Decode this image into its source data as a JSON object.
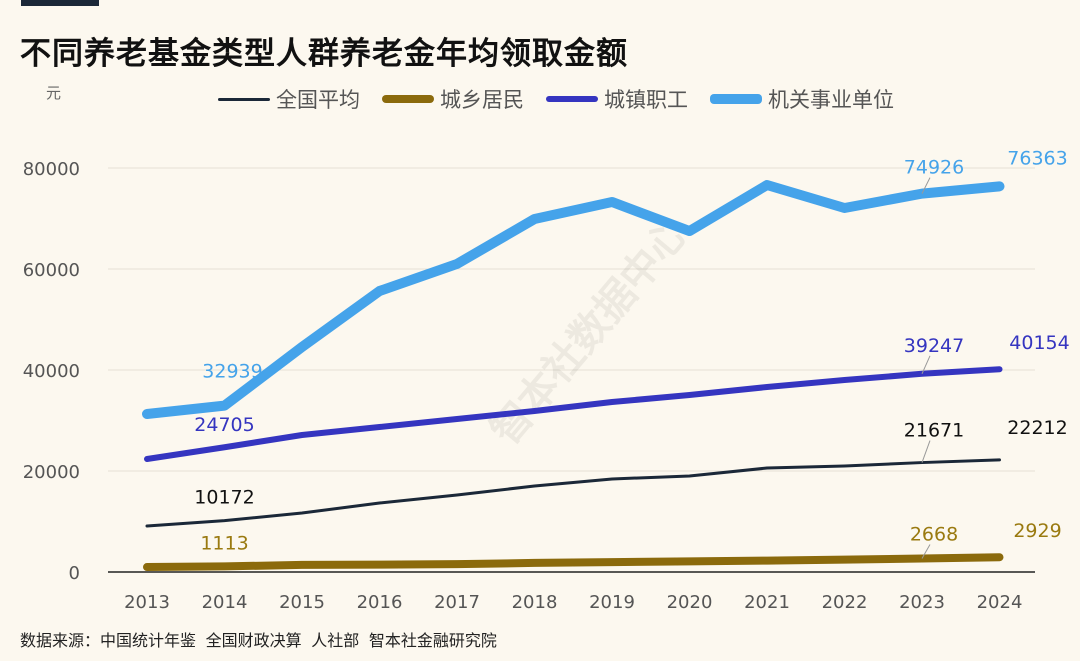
{
  "title": "不同养老基金类型人群养老金年均领取金额",
  "unit": "元",
  "source": "数据来源：中国统计年鉴 全国财政决算 人社部 智本社金融研究院",
  "watermark": "智本社数据中心",
  "chart_data": {
    "type": "line",
    "title": "不同养老基金类型人群养老金年均领取金额",
    "ylabel": "元",
    "ylim": [
      0,
      80000
    ],
    "yticks": [
      0,
      20000,
      40000,
      60000,
      80000
    ],
    "grid": true,
    "legend": "top",
    "x": [
      2013,
      2014,
      2015,
      2016,
      2017,
      2018,
      2019,
      2020,
      2021,
      2022,
      2023,
      2024
    ],
    "series": [
      {
        "name": "全国平均",
        "color": "#1b2838",
        "values": [
          9110,
          10172,
          11680,
          13660,
          15250,
          17030,
          18420,
          19010,
          20590,
          21000,
          21671,
          22212
        ],
        "labels": [
          "10172",
          "21671",
          "22212"
        ],
        "label_color": "#111111"
      },
      {
        "name": "城乡居民",
        "color": "#8b6a0c",
        "values": [
          980,
          1113,
          1400,
          1450,
          1550,
          1800,
          1950,
          2100,
          2250,
          2450,
          2668,
          2929
        ],
        "labels": [
          "1113",
          "2668",
          "2929"
        ],
        "label_color": "#9a7a10"
      },
      {
        "name": "城镇职工",
        "color": "#3535c0",
        "values": [
          22380,
          24705,
          27130,
          28710,
          30300,
          31880,
          33660,
          35050,
          36630,
          38020,
          39247,
          40154
        ],
        "labels": [
          "24705",
          "39247",
          "40154"
        ],
        "label_color": "#3535c0"
      },
      {
        "name": "机关事业单位",
        "color": "#45a3ea",
        "values": [
          31290,
          32939,
          44550,
          55640,
          61000,
          69900,
          73270,
          67520,
          76630,
          72080,
          74926,
          76363
        ],
        "labels": [
          "32939",
          "74926",
          "76363"
        ],
        "label_color": "#45a3ea"
      }
    ]
  }
}
